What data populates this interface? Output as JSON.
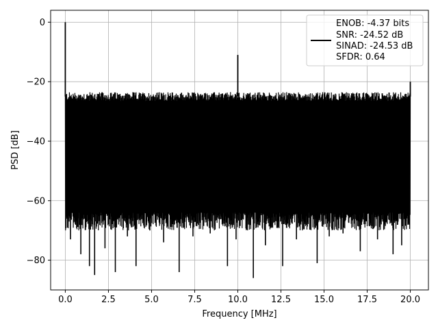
{
  "chart_data": {
    "type": "line",
    "xlabel": "Frequency [MHz]",
    "ylabel": "PSD [dB]",
    "xlim": [
      -0.85,
      21.05
    ],
    "ylim": [
      -90,
      4
    ],
    "xticks": [
      0.0,
      2.5,
      5.0,
      7.5,
      10.0,
      12.5,
      15.0,
      17.5,
      20.0
    ],
    "xtick_labels": [
      "0.0",
      "2.5",
      "5.0",
      "7.5",
      "10.0",
      "12.5",
      "15.0",
      "17.5",
      "20.0"
    ],
    "yticks": [
      0,
      -20,
      -40,
      -60,
      -80
    ],
    "ytick_labels": [
      "0",
      "−20",
      "−40",
      "−60",
      "−80"
    ],
    "grid": true,
    "legend_position": "top-right",
    "legend_entries": [
      "ENOB: -4.37 bits",
      "SNR: -24.52 dB",
      "SINAD: -24.53 dB",
      "SFDR: 0.64"
    ],
    "series": [
      {
        "color": "#000000",
        "noise_floor_top_db": -25,
        "noise_floor_bottom_db": -64,
        "x_start": 0,
        "x_end": 20,
        "peaks": [
          {
            "x": 0.0,
            "y": 0
          },
          {
            "x": 10.0,
            "y": -11
          },
          {
            "x": 20.0,
            "y": -20
          }
        ],
        "dips": [
          {
            "x": 0.3,
            "y": -73
          },
          {
            "x": 0.9,
            "y": -78
          },
          {
            "x": 1.4,
            "y": -82
          },
          {
            "x": 1.7,
            "y": -85
          },
          {
            "x": 2.3,
            "y": -76
          },
          {
            "x": 2.9,
            "y": -84
          },
          {
            "x": 3.6,
            "y": -72
          },
          {
            "x": 4.1,
            "y": -82
          },
          {
            "x": 4.9,
            "y": -70
          },
          {
            "x": 5.7,
            "y": -74
          },
          {
            "x": 6.6,
            "y": -84
          },
          {
            "x": 7.4,
            "y": -72
          },
          {
            "x": 8.4,
            "y": -71
          },
          {
            "x": 9.4,
            "y": -82
          },
          {
            "x": 9.9,
            "y": -73
          },
          {
            "x": 10.9,
            "y": -86
          },
          {
            "x": 11.6,
            "y": -75
          },
          {
            "x": 12.6,
            "y": -82
          },
          {
            "x": 13.4,
            "y": -73
          },
          {
            "x": 14.6,
            "y": -81
          },
          {
            "x": 15.3,
            "y": -72
          },
          {
            "x": 16.1,
            "y": -71
          },
          {
            "x": 17.1,
            "y": -77
          },
          {
            "x": 18.1,
            "y": -73
          },
          {
            "x": 19.0,
            "y": -78
          },
          {
            "x": 19.5,
            "y": -75
          }
        ]
      }
    ]
  }
}
